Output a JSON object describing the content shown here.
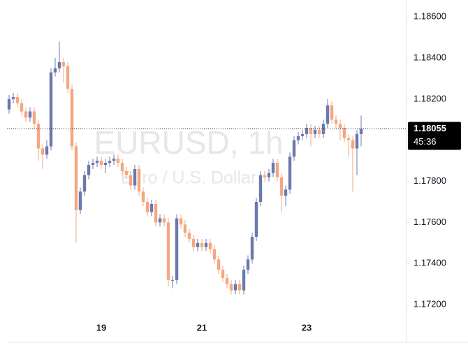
{
  "chart_data": {
    "type": "candlestick",
    "watermark": {
      "title": "EURUSD, 1h",
      "subtitle": "Euro / U.S. Dollar"
    },
    "countdown": "45:36",
    "up_color": "#6b79ac",
    "down_color": "#f5a77f",
    "categories": [
      null,
      null,
      null,
      null,
      null,
      null,
      null,
      null,
      null,
      null,
      null,
      null,
      null,
      null,
      null,
      null,
      null,
      null,
      null,
      null,
      null,
      null,
      "19",
      null,
      null,
      null,
      null,
      null,
      null,
      null,
      null,
      null,
      null,
      null,
      null,
      null,
      null,
      null,
      null,
      null,
      null,
      null,
      null,
      null,
      null,
      null,
      "21",
      null,
      null,
      null,
      null,
      null,
      null,
      null,
      null,
      null,
      null,
      null,
      null,
      null,
      null,
      null,
      null,
      null,
      null,
      null,
      null,
      null,
      null,
      null,
      null,
      "23",
      null,
      null,
      null,
      null,
      null,
      null,
      null,
      null,
      null,
      null,
      null,
      null,
      null
    ],
    "open": [
      1.1815,
      1.182,
      1.1821,
      1.1818,
      1.1814,
      1.1811,
      1.1814,
      1.1808,
      1.1796,
      1.1793,
      1.1797,
      1.1833,
      1.1835,
      1.1838,
      1.1836,
      1.1825,
      1.1797,
      1.1766,
      1.1775,
      1.1783,
      1.1788,
      1.1789,
      1.179,
      1.1788,
      1.1789,
      1.179,
      1.1791,
      1.1789,
      1.1785,
      1.1783,
      1.1778,
      1.1786,
      1.1775,
      1.177,
      1.1765,
      1.1769,
      1.176,
      1.1762,
      1.176,
      1.1732,
      1.1732,
      1.1762,
      1.1759,
      1.1755,
      1.1752,
      1.1748,
      1.175,
      1.1748,
      1.175,
      1.1747,
      1.1742,
      1.1737,
      1.1733,
      1.173,
      1.1727,
      1.173,
      1.1727,
      1.1737,
      1.1742,
      1.1753,
      1.177,
      1.1783,
      1.1782,
      1.1784,
      1.1789,
      1.1782,
      1.1773,
      1.1776,
      1.1792,
      1.18,
      1.1802,
      1.1803,
      1.1806,
      1.1803,
      1.1805,
      1.1803,
      1.1808,
      1.1817,
      1.181,
      1.1808,
      1.1806,
      1.1801,
      1.18,
      1.1796,
      1.1803
    ],
    "high": [
      1.1822,
      1.1823,
      1.1823,
      1.182,
      1.1816,
      1.1816,
      1.1816,
      1.181,
      1.1798,
      1.18,
      1.1835,
      1.184,
      1.1848,
      1.184,
      1.1838,
      1.1827,
      1.1799,
      1.1777,
      1.1785,
      1.179,
      1.1791,
      1.1792,
      1.1792,
      1.1791,
      1.1792,
      1.1793,
      1.1793,
      1.1791,
      1.1787,
      1.1785,
      1.1788,
      1.1788,
      1.1777,
      1.1772,
      1.1771,
      1.1771,
      1.1764,
      1.1764,
      1.1762,
      1.1734,
      1.1764,
      1.1764,
      1.1761,
      1.1757,
      1.1754,
      1.1752,
      1.1752,
      1.1752,
      1.1752,
      1.1749,
      1.1744,
      1.1739,
      1.1735,
      1.1732,
      1.1732,
      1.1732,
      1.1739,
      1.1744,
      1.1755,
      1.1772,
      1.1785,
      1.1785,
      1.1786,
      1.1791,
      1.1791,
      1.1784,
      1.1778,
      1.1794,
      1.1802,
      1.1804,
      1.1805,
      1.1808,
      1.1808,
      1.1807,
      1.1807,
      1.181,
      1.182,
      1.1819,
      1.1812,
      1.181,
      1.1808,
      1.1803,
      1.1802,
      1.1805,
      1.1812
    ],
    "low": [
      1.1813,
      1.1818,
      1.1816,
      1.1812,
      1.1809,
      1.1809,
      1.1806,
      1.179,
      1.1786,
      1.1791,
      1.1795,
      1.1831,
      1.1833,
      1.1828,
      1.1823,
      1.1795,
      1.175,
      1.1764,
      1.1773,
      1.1781,
      1.1786,
      1.1787,
      1.1786,
      1.1784,
      1.1787,
      1.1788,
      1.1787,
      1.1783,
      1.1781,
      1.1776,
      1.1776,
      1.1773,
      1.1768,
      1.1763,
      1.1763,
      1.1758,
      1.1758,
      1.1758,
      1.1729,
      1.1728,
      1.173,
      1.1757,
      1.1753,
      1.175,
      1.1746,
      1.1746,
      1.1746,
      1.1746,
      1.1745,
      1.174,
      1.1735,
      1.1731,
      1.1728,
      1.1725,
      1.1725,
      1.1725,
      1.1725,
      1.1735,
      1.174,
      1.1751,
      1.1768,
      1.178,
      1.178,
      1.1782,
      1.178,
      1.1765,
      1.1768,
      1.1774,
      1.179,
      1.1798,
      1.18,
      1.1801,
      1.1797,
      1.1801,
      1.1801,
      1.1801,
      1.1806,
      1.1808,
      1.1806,
      1.18,
      1.1799,
      1.1792,
      1.1775,
      1.1783,
      1.1797
    ],
    "close": [
      1.182,
      1.1821,
      1.1818,
      1.1814,
      1.1811,
      1.1814,
      1.1808,
      1.1796,
      1.1793,
      1.1797,
      1.1833,
      1.1835,
      1.1838,
      1.1836,
      1.1825,
      1.1797,
      1.1766,
      1.1775,
      1.1783,
      1.1788,
      1.1789,
      1.179,
      1.1788,
      1.1789,
      1.179,
      1.1791,
      1.1789,
      1.1785,
      1.1783,
      1.1778,
      1.1786,
      1.1775,
      1.177,
      1.1765,
      1.1769,
      1.176,
      1.1762,
      1.176,
      1.1732,
      1.1732,
      1.1762,
      1.1759,
      1.1755,
      1.1752,
      1.1748,
      1.175,
      1.1748,
      1.175,
      1.1747,
      1.1742,
      1.1737,
      1.1733,
      1.173,
      1.1727,
      1.173,
      1.1727,
      1.1737,
      1.1742,
      1.1753,
      1.177,
      1.1783,
      1.1782,
      1.1784,
      1.1789,
      1.1782,
      1.1773,
      1.1776,
      1.1792,
      1.18,
      1.1802,
      1.1803,
      1.1806,
      1.1803,
      1.1805,
      1.1803,
      1.1808,
      1.1817,
      1.181,
      1.1808,
      1.1806,
      1.1801,
      1.18,
      1.1796,
      1.1803,
      1.18055
    ],
    "ylim": [
      1.17017,
      1.18682
    ],
    "yticks": [
      {
        "value": 1.172,
        "label": "1.17200"
      },
      {
        "value": 1.174,
        "label": "1.17400"
      },
      {
        "value": 1.176,
        "label": "1.17600"
      },
      {
        "value": 1.178,
        "label": "1.17800"
      },
      {
        "value": 1.182,
        "label": "1.18200"
      },
      {
        "value": 1.184,
        "label": "1.18400"
      },
      {
        "value": 1.186,
        "label": "1.18600"
      }
    ],
    "grid": false
  }
}
